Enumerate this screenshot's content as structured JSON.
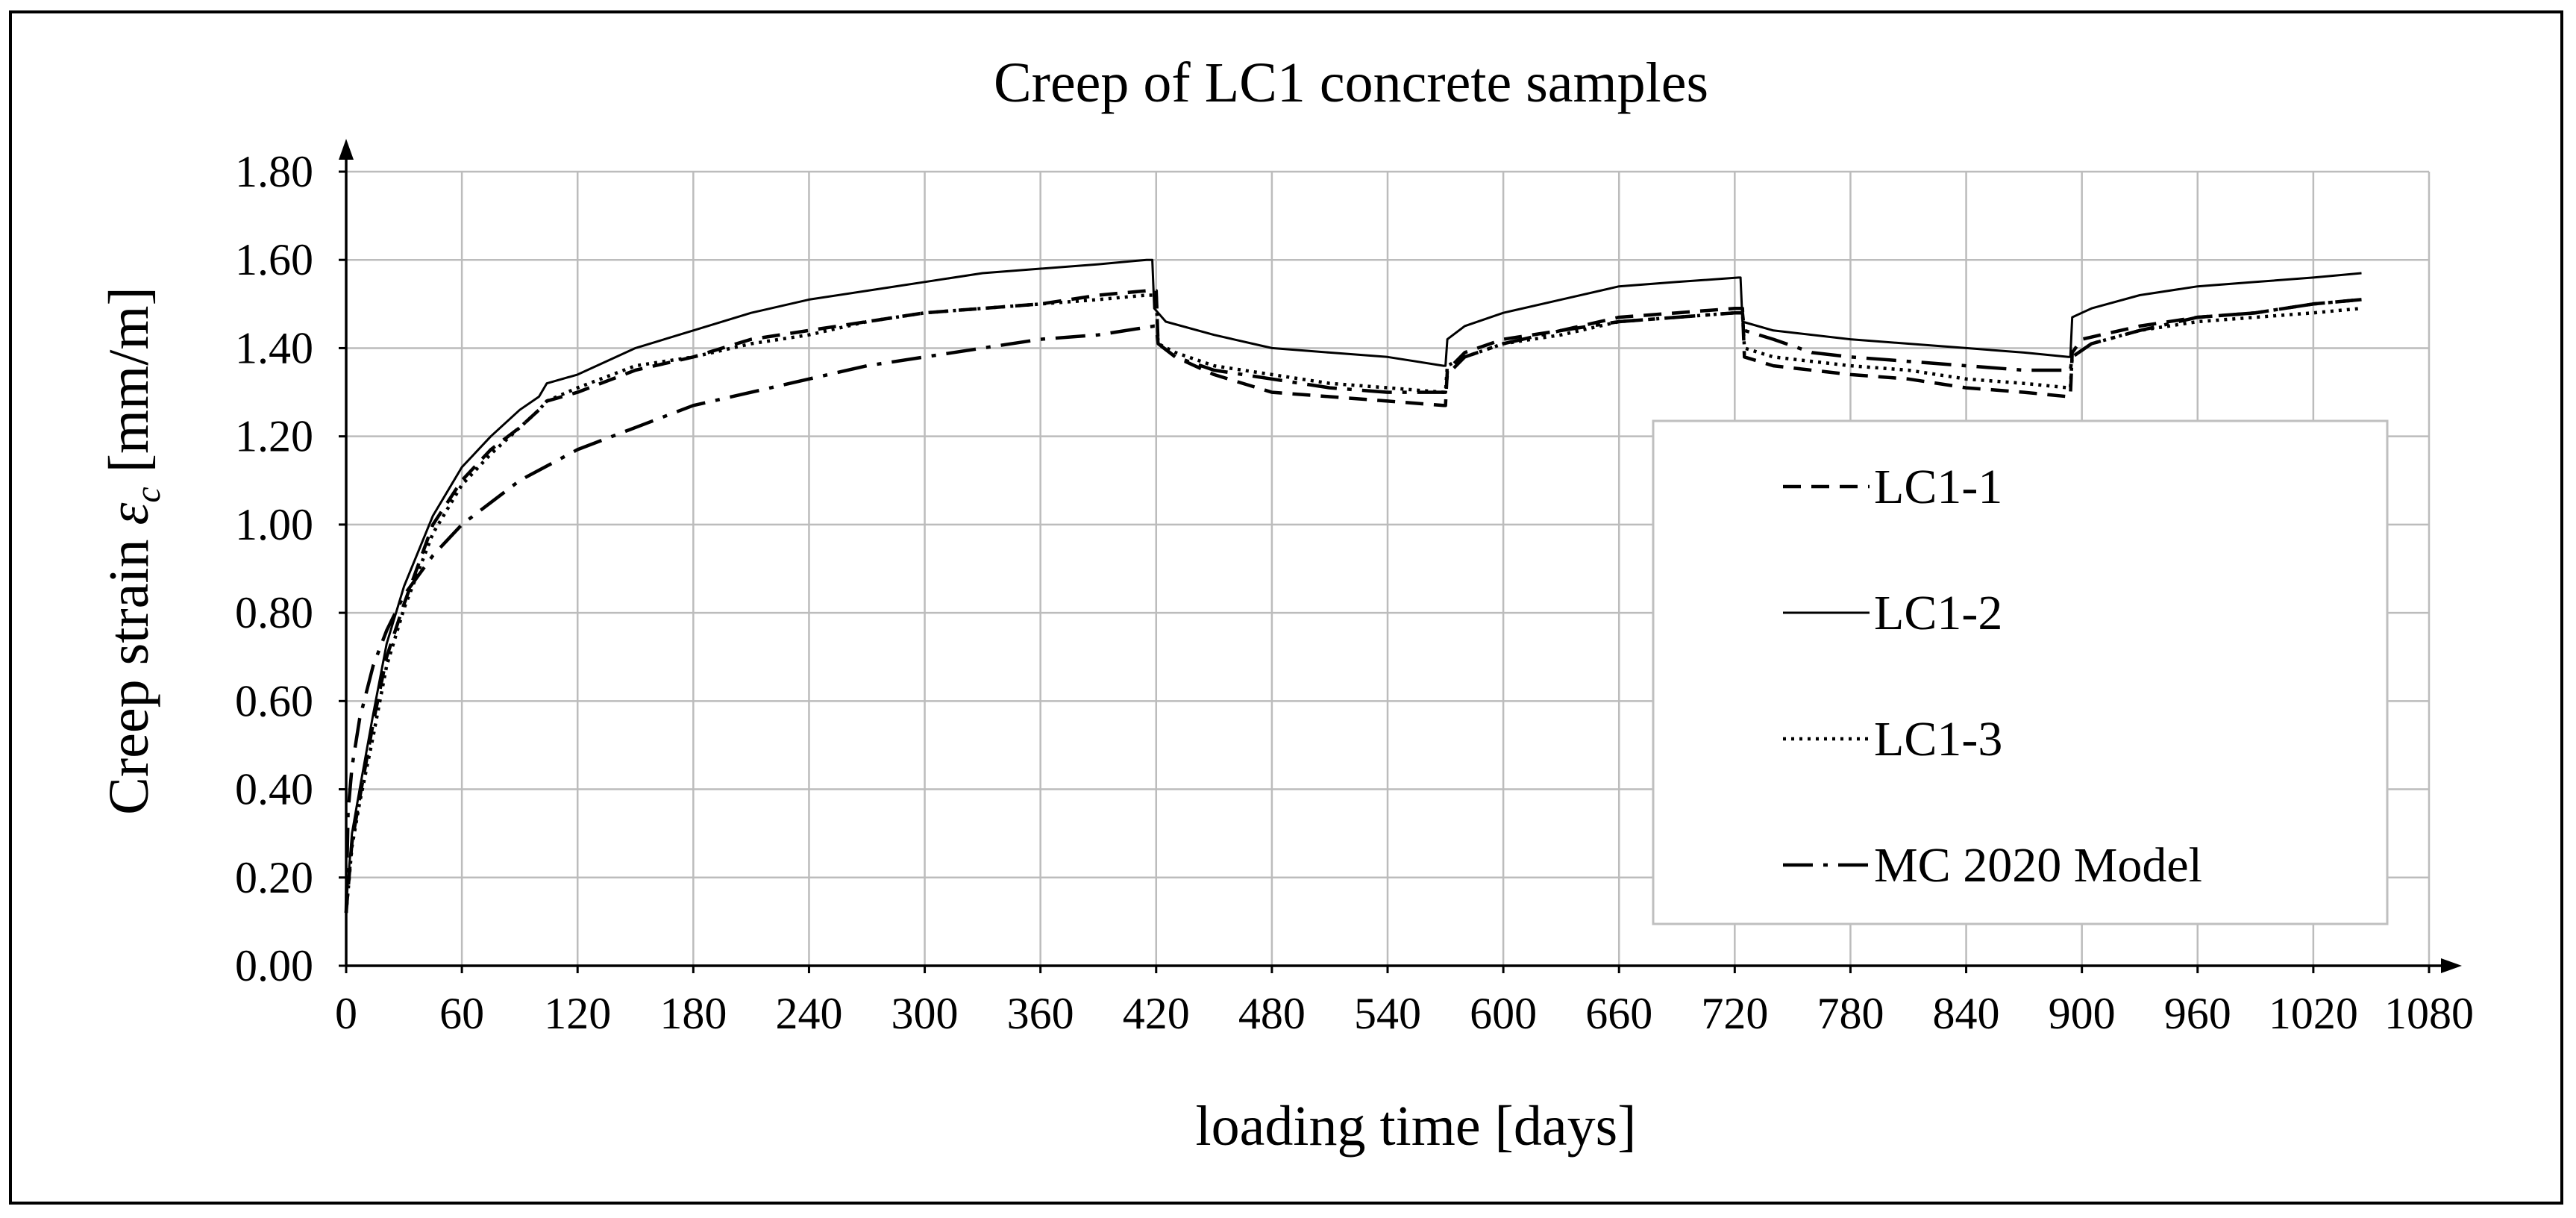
{
  "chart_data": {
    "type": "line",
    "title": "Creep of LC1 concrete samples",
    "xlabel": "loading time [days]",
    "ylabel_parts": [
      "Creep strain ",
      "ε",
      "c",
      " [mm/m]"
    ],
    "xlim": [
      0,
      1080
    ],
    "ylim": [
      0,
      1.8
    ],
    "x_ticks": [
      0,
      60,
      120,
      180,
      240,
      300,
      360,
      420,
      480,
      540,
      600,
      660,
      720,
      780,
      840,
      900,
      960,
      1020,
      1080
    ],
    "x_tick_labels": [
      "0",
      "60",
      "120",
      "180",
      "240",
      "300",
      "360",
      "420",
      "480",
      "540",
      "600",
      "660",
      "720",
      "780",
      "840",
      "900",
      "960",
      "1020",
      "1080"
    ],
    "y_ticks": [
      0,
      0.2,
      0.4,
      0.6,
      0.8,
      1.0,
      1.2,
      1.4,
      1.6,
      1.8
    ],
    "y_tick_labels": [
      "0.00",
      "0.20",
      "0.40",
      "0.60",
      "0.80",
      "1.00",
      "1.20",
      "1.40",
      "1.60",
      "1.80"
    ],
    "grid": true,
    "legend_position": "right",
    "series": [
      {
        "name": "LC1-1",
        "style": "dashed",
        "points": [
          [
            0,
            0.12
          ],
          [
            3,
            0.28
          ],
          [
            7,
            0.38
          ],
          [
            14,
            0.55
          ],
          [
            21,
            0.7
          ],
          [
            30,
            0.82
          ],
          [
            45,
            1.0
          ],
          [
            60,
            1.1
          ],
          [
            75,
            1.17
          ],
          [
            90,
            1.22
          ],
          [
            100,
            1.26
          ],
          [
            104,
            1.28
          ],
          [
            120,
            1.3
          ],
          [
            150,
            1.35
          ],
          [
            180,
            1.38
          ],
          [
            210,
            1.42
          ],
          [
            240,
            1.44
          ],
          [
            270,
            1.46
          ],
          [
            300,
            1.48
          ],
          [
            330,
            1.49
          ],
          [
            360,
            1.5
          ],
          [
            390,
            1.52
          ],
          [
            415,
            1.53
          ],
          [
            420,
            1.53
          ],
          [
            421,
            1.41
          ],
          [
            430,
            1.38
          ],
          [
            450,
            1.34
          ],
          [
            480,
            1.3
          ],
          [
            510,
            1.29
          ],
          [
            540,
            1.28
          ],
          [
            569,
            1.27
          ],
          [
            570,
            1.27
          ],
          [
            571,
            1.35
          ],
          [
            580,
            1.39
          ],
          [
            600,
            1.42
          ],
          [
            630,
            1.44
          ],
          [
            660,
            1.47
          ],
          [
            690,
            1.48
          ],
          [
            720,
            1.49
          ],
          [
            724,
            1.49
          ],
          [
            725,
            1.38
          ],
          [
            740,
            1.36
          ],
          [
            780,
            1.34
          ],
          [
            810,
            1.33
          ],
          [
            840,
            1.31
          ],
          [
            870,
            1.3
          ],
          [
            893,
            1.29
          ],
          [
            894,
            1.29
          ],
          [
            895,
            1.39
          ],
          [
            900,
            1.42
          ],
          [
            930,
            1.45
          ],
          [
            960,
            1.47
          ],
          [
            990,
            1.48
          ],
          [
            1020,
            1.5
          ],
          [
            1045,
            1.51
          ]
        ]
      },
      {
        "name": "LC1-2",
        "style": "solid",
        "points": [
          [
            0,
            0.14
          ],
          [
            3,
            0.3
          ],
          [
            7,
            0.4
          ],
          [
            14,
            0.57
          ],
          [
            21,
            0.73
          ],
          [
            30,
            0.86
          ],
          [
            45,
            1.02
          ],
          [
            60,
            1.13
          ],
          [
            75,
            1.2
          ],
          [
            90,
            1.26
          ],
          [
            100,
            1.29
          ],
          [
            104,
            1.32
          ],
          [
            120,
            1.34
          ],
          [
            150,
            1.4
          ],
          [
            180,
            1.44
          ],
          [
            210,
            1.48
          ],
          [
            240,
            1.51
          ],
          [
            270,
            1.53
          ],
          [
            300,
            1.55
          ],
          [
            330,
            1.57
          ],
          [
            360,
            1.58
          ],
          [
            390,
            1.59
          ],
          [
            415,
            1.6
          ],
          [
            418,
            1.6
          ],
          [
            419,
            1.49
          ],
          [
            425,
            1.46
          ],
          [
            450,
            1.43
          ],
          [
            470,
            1.41
          ],
          [
            480,
            1.4
          ],
          [
            510,
            1.39
          ],
          [
            540,
            1.38
          ],
          [
            569,
            1.36
          ],
          [
            570,
            1.36
          ],
          [
            571,
            1.42
          ],
          [
            580,
            1.45
          ],
          [
            600,
            1.48
          ],
          [
            630,
            1.51
          ],
          [
            660,
            1.54
          ],
          [
            690,
            1.55
          ],
          [
            722,
            1.56
          ],
          [
            723,
            1.56
          ],
          [
            724,
            1.46
          ],
          [
            740,
            1.44
          ],
          [
            780,
            1.42
          ],
          [
            810,
            1.41
          ],
          [
            840,
            1.4
          ],
          [
            870,
            1.39
          ],
          [
            893,
            1.38
          ],
          [
            894,
            1.38
          ],
          [
            895,
            1.47
          ],
          [
            905,
            1.49
          ],
          [
            930,
            1.52
          ],
          [
            960,
            1.54
          ],
          [
            990,
            1.55
          ],
          [
            1020,
            1.56
          ],
          [
            1045,
            1.57
          ]
        ]
      },
      {
        "name": "LC1-3",
        "style": "dotted",
        "points": [
          [
            0,
            0.12
          ],
          [
            3,
            0.27
          ],
          [
            7,
            0.37
          ],
          [
            14,
            0.52
          ],
          [
            21,
            0.68
          ],
          [
            30,
            0.81
          ],
          [
            45,
            0.98
          ],
          [
            60,
            1.09
          ],
          [
            75,
            1.16
          ],
          [
            90,
            1.22
          ],
          [
            100,
            1.26
          ],
          [
            104,
            1.28
          ],
          [
            120,
            1.31
          ],
          [
            150,
            1.36
          ],
          [
            180,
            1.38
          ],
          [
            210,
            1.41
          ],
          [
            240,
            1.43
          ],
          [
            270,
            1.46
          ],
          [
            300,
            1.48
          ],
          [
            330,
            1.49
          ],
          [
            360,
            1.5
          ],
          [
            390,
            1.51
          ],
          [
            415,
            1.52
          ],
          [
            420,
            1.52
          ],
          [
            421,
            1.41
          ],
          [
            430,
            1.39
          ],
          [
            450,
            1.36
          ],
          [
            480,
            1.34
          ],
          [
            510,
            1.32
          ],
          [
            540,
            1.31
          ],
          [
            569,
            1.3
          ],
          [
            570,
            1.3
          ],
          [
            571,
            1.36
          ],
          [
            580,
            1.38
          ],
          [
            600,
            1.41
          ],
          [
            630,
            1.43
          ],
          [
            660,
            1.46
          ],
          [
            690,
            1.47
          ],
          [
            720,
            1.48
          ],
          [
            724,
            1.48
          ],
          [
            725,
            1.4
          ],
          [
            740,
            1.38
          ],
          [
            780,
            1.36
          ],
          [
            810,
            1.35
          ],
          [
            840,
            1.33
          ],
          [
            870,
            1.32
          ],
          [
            893,
            1.31
          ],
          [
            894,
            1.31
          ],
          [
            895,
            1.38
          ],
          [
            905,
            1.41
          ],
          [
            930,
            1.44
          ],
          [
            960,
            1.46
          ],
          [
            990,
            1.47
          ],
          [
            1020,
            1.48
          ],
          [
            1045,
            1.49
          ]
        ]
      },
      {
        "name": "MC 2020 Model",
        "style": "dashdot",
        "points": [
          [
            0,
            0.12
          ],
          [
            1,
            0.35
          ],
          [
            3,
            0.45
          ],
          [
            7,
            0.56
          ],
          [
            14,
            0.68
          ],
          [
            21,
            0.76
          ],
          [
            30,
            0.84
          ],
          [
            45,
            0.93
          ],
          [
            60,
            1.0
          ],
          [
            75,
            1.05
          ],
          [
            90,
            1.1
          ],
          [
            120,
            1.17
          ],
          [
            150,
            1.22
          ],
          [
            180,
            1.27
          ],
          [
            210,
            1.3
          ],
          [
            240,
            1.33
          ],
          [
            270,
            1.36
          ],
          [
            300,
            1.38
          ],
          [
            330,
            1.4
          ],
          [
            360,
            1.42
          ],
          [
            390,
            1.43
          ],
          [
            419,
            1.45
          ],
          [
            420,
            1.45
          ],
          [
            421,
            1.41
          ],
          [
            430,
            1.38
          ],
          [
            450,
            1.35
          ],
          [
            480,
            1.33
          ],
          [
            510,
            1.31
          ],
          [
            540,
            1.3
          ],
          [
            569,
            1.3
          ],
          [
            570,
            1.3
          ],
          [
            571,
            1.34
          ],
          [
            580,
            1.38
          ],
          [
            600,
            1.41
          ],
          [
            630,
            1.44
          ],
          [
            660,
            1.46
          ],
          [
            690,
            1.47
          ],
          [
            720,
            1.48
          ],
          [
            724,
            1.48
          ],
          [
            725,
            1.44
          ],
          [
            740,
            1.42
          ],
          [
            760,
            1.39
          ],
          [
            780,
            1.38
          ],
          [
            810,
            1.37
          ],
          [
            840,
            1.36
          ],
          [
            870,
            1.35
          ],
          [
            893,
            1.35
          ],
          [
            894,
            1.35
          ],
          [
            895,
            1.38
          ],
          [
            905,
            1.41
          ],
          [
            930,
            1.44
          ],
          [
            960,
            1.47
          ],
          [
            990,
            1.48
          ],
          [
            1020,
            1.5
          ],
          [
            1045,
            1.51
          ]
        ]
      }
    ]
  }
}
